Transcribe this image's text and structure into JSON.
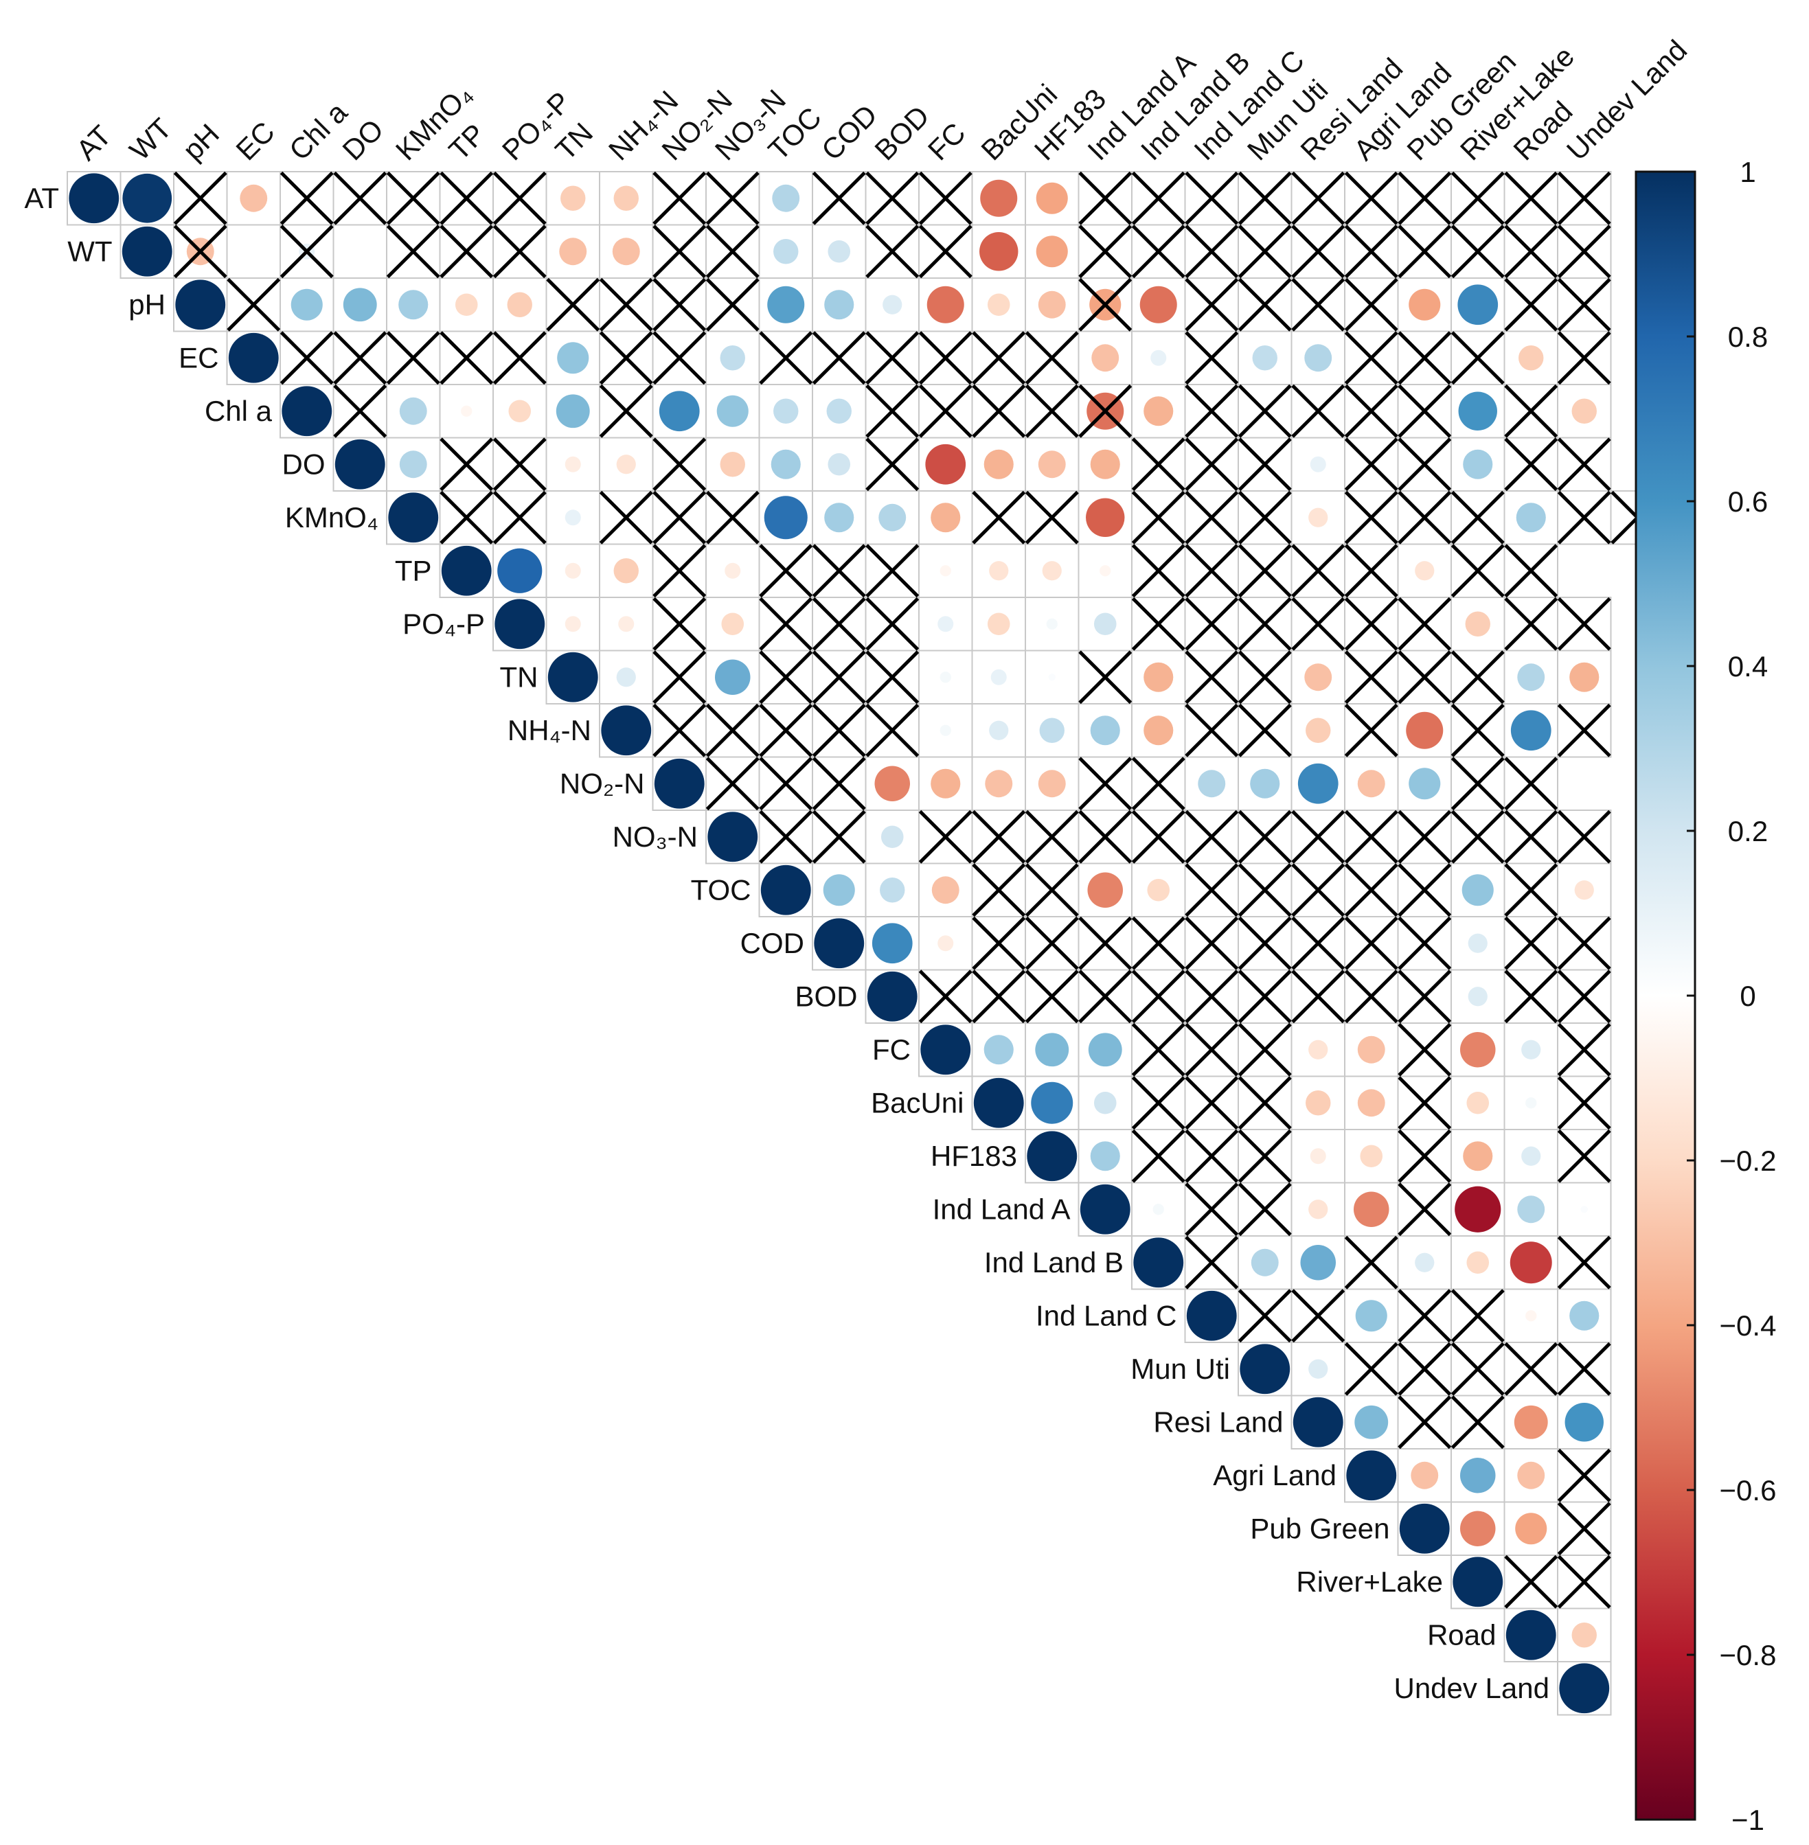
{
  "chart_data": {
    "type": "heatmap",
    "subtype": "correlation-matrix-upper-circles",
    "title": "",
    "variables": [
      "AT",
      "WT",
      "pH",
      "EC",
      "Chl a",
      "DO",
      "KMnO4",
      "TP",
      "PO4-P",
      "TN",
      "NH4-N",
      "NO2-N",
      "NO3-N",
      "TOC",
      "COD",
      "BOD",
      "FC",
      "BacUni",
      "HF183",
      "Ind Land A",
      "Ind Land B",
      "Ind Land C",
      "Mun Uti",
      "Resi Land",
      "Agri Land",
      "Pub Green",
      "River+Lake",
      "Road",
      "Undev Land"
    ],
    "display_labels": [
      "AT",
      "WT",
      "pH",
      "EC",
      "Chl a",
      "DO",
      "KMnO₄",
      "TP",
      "PO₄-P",
      "TN",
      "NH₄-N",
      "NO₂-N",
      "NO₃-N",
      "TOC",
      "COD",
      "BOD",
      "FC",
      "BacUni",
      "HF183",
      "Ind Land A",
      "Ind Land B",
      "Ind Land C",
      "Mun Uti",
      "Resi Land",
      "Agri Land",
      "Pub Green",
      "River+Lake",
      "Road",
      "Undev Land"
    ],
    "colorbar": {
      "range": [
        -1,
        1
      ],
      "tick_values": [
        1,
        0.8,
        0.6,
        0.4,
        0.2,
        0,
        -0.2,
        -0.4,
        -0.6,
        -0.8,
        -1
      ],
      "tick_labels": [
        "1",
        "0.8",
        "0.6",
        "0.4",
        "0.2",
        "0",
        "−0.2",
        "−0.4",
        "−0.6",
        "−0.8",
        "−1"
      ],
      "palette": [
        "#67001f",
        "#b2182b",
        "#d6604d",
        "#f4a582",
        "#fddbc7",
        "#ffffff",
        "#d1e5f0",
        "#92c5de",
        "#4393c3",
        "#2166ac",
        "#053061"
      ]
    },
    "nonsignificant_marker": "X",
    "rows": [
      {
        "v": [
          1,
          0.97,
          null,
          -0.3,
          null,
          null,
          null,
          null,
          null,
          -0.25,
          -0.25,
          null,
          null,
          0.3,
          null,
          null,
          null,
          -0.55,
          -0.4,
          null,
          null,
          null,
          null,
          null,
          null,
          null,
          null,
          null,
          null
        ],
        "x": [
          0,
          0,
          1,
          0,
          1,
          1,
          1,
          1,
          1,
          0,
          0,
          1,
          1,
          0,
          1,
          1,
          1,
          0,
          0,
          1,
          1,
          1,
          1,
          1,
          1,
          1,
          1,
          1,
          1
        ]
      },
      {
        "v": [
          1,
          -0.3,
          null,
          0.1,
          null,
          null,
          null,
          null,
          -0.3,
          -0.3,
          null,
          null,
          0.25,
          0.2,
          null,
          null,
          -0.6,
          -0.4,
          null,
          null,
          null,
          null,
          null,
          null,
          null,
          null,
          null,
          null
        ],
        "x": [
          0,
          1,
          0,
          1,
          0,
          1,
          1,
          1,
          0,
          0,
          1,
          1,
          0,
          0,
          1,
          1,
          0,
          0,
          1,
          1,
          1,
          1,
          1,
          1,
          1,
          1,
          1,
          1
        ]
      },
      {
        "v": [
          1,
          null,
          0.4,
          0.45,
          0.35,
          -0.2,
          -0.25,
          null,
          null,
          null,
          null,
          0.55,
          0.35,
          0.15,
          -0.55,
          -0.2,
          -0.3,
          -0.4,
          -0.55,
          null,
          null,
          null,
          null,
          -0.4,
          0.65,
          null,
          null
        ],
        "x": [
          0,
          1,
          0,
          0,
          0,
          0,
          0,
          1,
          1,
          1,
          1,
          0,
          0,
          0,
          0,
          0,
          0,
          1,
          0,
          1,
          1,
          1,
          1,
          0,
          0,
          1,
          1
        ]
      },
      {
        "v": [
          1,
          null,
          null,
          null,
          null,
          null,
          0.4,
          null,
          null,
          0.25,
          null,
          null,
          null,
          null,
          null,
          null,
          -0.3,
          0.1,
          null,
          0.25,
          0.3,
          null,
          null,
          null,
          -0.25,
          null
        ],
        "x": [
          0,
          1,
          1,
          1,
          1,
          1,
          0,
          1,
          1,
          0,
          1,
          1,
          1,
          1,
          1,
          1,
          0,
          0,
          1,
          0,
          0,
          1,
          1,
          1,
          0,
          1
        ]
      },
      {
        "v": [
          1,
          null,
          0.3,
          -0.05,
          -0.2,
          0.45,
          null,
          0.65,
          0.4,
          0.25,
          0.25,
          null,
          null,
          null,
          null,
          -0.55,
          -0.35,
          null,
          null,
          null,
          null,
          null,
          0.6,
          null,
          -0.25
        ],
        "x": [
          0,
          1,
          0,
          0,
          0,
          0,
          1,
          0,
          0,
          0,
          0,
          1,
          1,
          1,
          1,
          1,
          0,
          1,
          1,
          1,
          1,
          1,
          0,
          1,
          0
        ]
      },
      {
        "v": [
          1,
          0.3,
          null,
          null,
          -0.1,
          -0.15,
          null,
          -0.25,
          0.35,
          0.2,
          null,
          -0.65,
          -0.35,
          -0.3,
          -0.35,
          null,
          null,
          null,
          0.1,
          null,
          null,
          0.35,
          null,
          null
        ],
        "x": [
          0,
          0,
          1,
          1,
          0,
          0,
          1,
          0,
          0,
          0,
          1,
          0,
          0,
          0,
          0,
          1,
          1,
          1,
          0,
          1,
          1,
          0,
          1,
          1
        ]
      },
      {
        "v": [
          1,
          null,
          null,
          0.1,
          null,
          null,
          null,
          0.75,
          0.35,
          0.3,
          -0.35,
          null,
          null,
          -0.6,
          null,
          null,
          null,
          -0.15,
          null,
          null,
          null,
          0.35,
          null,
          null
        ],
        "x": [
          0,
          1,
          1,
          0,
          1,
          1,
          1,
          0,
          0,
          0,
          0,
          1,
          1,
          0,
          1,
          1,
          1,
          0,
          1,
          1,
          1,
          0,
          1,
          1
        ]
      },
      {
        "v": [
          1,
          0.8,
          -0.1,
          -0.25,
          null,
          -0.1,
          null,
          null,
          null,
          -0.05,
          -0.15,
          -0.15,
          -0.05,
          null,
          null,
          null,
          null,
          null,
          -0.15,
          null,
          null
        ],
        "x": [
          0,
          0,
          0,
          0,
          1,
          0,
          1,
          1,
          1,
          0,
          0,
          0,
          0,
          1,
          1,
          1,
          1,
          1,
          0,
          1,
          1
        ]
      },
      {
        "v": [
          1,
          -0.1,
          -0.1,
          null,
          -0.2,
          null,
          null,
          null,
          0.1,
          -0.2,
          0.05,
          0.2,
          null,
          null,
          null,
          null,
          null,
          null,
          -0.25,
          null,
          null
        ],
        "x": [
          0,
          0,
          0,
          1,
          0,
          1,
          1,
          1,
          0,
          0,
          0,
          0,
          1,
          1,
          1,
          1,
          1,
          1,
          0,
          1,
          1
        ]
      },
      {
        "v": [
          1,
          0.15,
          null,
          0.5,
          null,
          null,
          null,
          0.05,
          0.1,
          0.02,
          null,
          -0.35,
          null,
          null,
          -0.3,
          null,
          null,
          null,
          0.3,
          -0.35
        ],
        "x": [
          0,
          0,
          1,
          0,
          1,
          1,
          1,
          0,
          0,
          0,
          1,
          0,
          1,
          1,
          0,
          1,
          1,
          1,
          0,
          0
        ]
      },
      {
        "v": [
          1,
          null,
          null,
          null,
          null,
          null,
          0.05,
          0.15,
          0.25,
          0.35,
          -0.35,
          null,
          null,
          -0.25,
          null,
          -0.55,
          null,
          0.65,
          null
        ],
        "x": [
          0,
          1,
          1,
          1,
          1,
          1,
          0,
          0,
          0,
          0,
          0,
          1,
          1,
          0,
          1,
          0,
          1,
          0,
          1
        ]
      },
      {
        "v": [
          1,
          null,
          null,
          null,
          -0.5,
          -0.35,
          -0.3,
          -0.3,
          null,
          null,
          0.3,
          0.35,
          0.65,
          -0.3,
          0.4,
          null,
          null
        ],
        "x": [
          0,
          1,
          1,
          1,
          0,
          0,
          0,
          0,
          1,
          1,
          0,
          0,
          0,
          0,
          0,
          1,
          1
        ]
      },
      {
        "v": [
          1,
          null,
          null,
          0.2,
          null,
          null,
          null,
          null,
          null,
          null,
          null,
          null,
          null,
          null,
          null,
          null,
          null
        ],
        "x": [
          0,
          1,
          1,
          0,
          1,
          1,
          1,
          1,
          1,
          1,
          1,
          1,
          1,
          1,
          1,
          1,
          1
        ]
      },
      {
        "v": [
          1,
          0.4,
          0.25,
          -0.3,
          null,
          null,
          -0.5,
          -0.2,
          null,
          null,
          null,
          null,
          null,
          0.4,
          null,
          -0.15
        ],
        "x": [
          0,
          0,
          0,
          0,
          1,
          1,
          0,
          0,
          1,
          1,
          1,
          1,
          1,
          0,
          1,
          0
        ]
      },
      {
        "v": [
          1,
          0.65,
          -0.1,
          null,
          null,
          null,
          null,
          null,
          null,
          null,
          null,
          null,
          0.15,
          null,
          null
        ],
        "x": [
          0,
          0,
          0,
          1,
          1,
          1,
          1,
          1,
          1,
          1,
          1,
          1,
          0,
          1,
          1
        ]
      },
      {
        "v": [
          1,
          null,
          null,
          null,
          null,
          null,
          null,
          null,
          null,
          null,
          null,
          0.15,
          null,
          null
        ],
        "x": [
          0,
          1,
          1,
          1,
          1,
          1,
          1,
          1,
          1,
          1,
          1,
          0,
          1,
          1
        ]
      },
      {
        "v": [
          1,
          0.35,
          0.45,
          0.45,
          null,
          null,
          null,
          -0.15,
          -0.3,
          null,
          -0.5,
          0.15,
          null
        ],
        "x": [
          0,
          0,
          0,
          0,
          1,
          1,
          1,
          0,
          0,
          1,
          0,
          0,
          1
        ]
      },
      {
        "v": [
          1,
          0.7,
          0.2,
          null,
          null,
          null,
          -0.25,
          -0.3,
          null,
          -0.2,
          0.05,
          null
        ],
        "x": [
          0,
          0,
          0,
          1,
          1,
          1,
          0,
          0,
          1,
          0,
          0,
          1
        ]
      },
      {
        "v": [
          1,
          0.35,
          null,
          null,
          null,
          -0.1,
          -0.2,
          null,
          -0.35,
          0.15,
          null
        ],
        "x": [
          0,
          0,
          1,
          1,
          1,
          0,
          0,
          1,
          0,
          0,
          1
        ]
      },
      {
        "v": [
          1,
          0.05,
          null,
          null,
          -0.15,
          -0.5,
          null,
          -0.85,
          0.3,
          0.02
        ],
        "x": [
          0,
          0,
          1,
          1,
          0,
          0,
          1,
          0,
          0,
          0
        ]
      },
      {
        "v": [
          1,
          null,
          0.3,
          0.5,
          null,
          0.15,
          -0.2,
          -0.7,
          null
        ],
        "x": [
          0,
          1,
          0,
          0,
          1,
          0,
          0,
          0,
          1
        ]
      },
      {
        "v": [
          1,
          null,
          null,
          0.4,
          null,
          null,
          -0.05,
          0.35
        ],
        "x": [
          0,
          1,
          1,
          0,
          1,
          1,
          0,
          0
        ]
      },
      {
        "v": [
          1,
          0.15,
          null,
          null,
          null,
          null,
          null
        ],
        "x": [
          0,
          0,
          1,
          1,
          1,
          1,
          1
        ]
      },
      {
        "v": [
          1,
          0.45,
          null,
          null,
          -0.45,
          0.6
        ],
        "x": [
          0,
          0,
          1,
          1,
          0,
          0
        ]
      },
      {
        "v": [
          1,
          -0.3,
          0.5,
          -0.3,
          null
        ],
        "x": [
          0,
          0,
          0,
          0,
          1
        ]
      },
      {
        "v": [
          1,
          -0.5,
          -0.4,
          null
        ],
        "x": [
          0,
          0,
          0,
          1
        ]
      },
      {
        "v": [
          1,
          null,
          null
        ],
        "x": [
          0,
          1,
          1
        ]
      },
      {
        "v": [
          1,
          -0.25
        ],
        "x": [
          0,
          0
        ]
      },
      {
        "v": [
          1
        ],
        "x": [
          0
        ]
      }
    ]
  }
}
